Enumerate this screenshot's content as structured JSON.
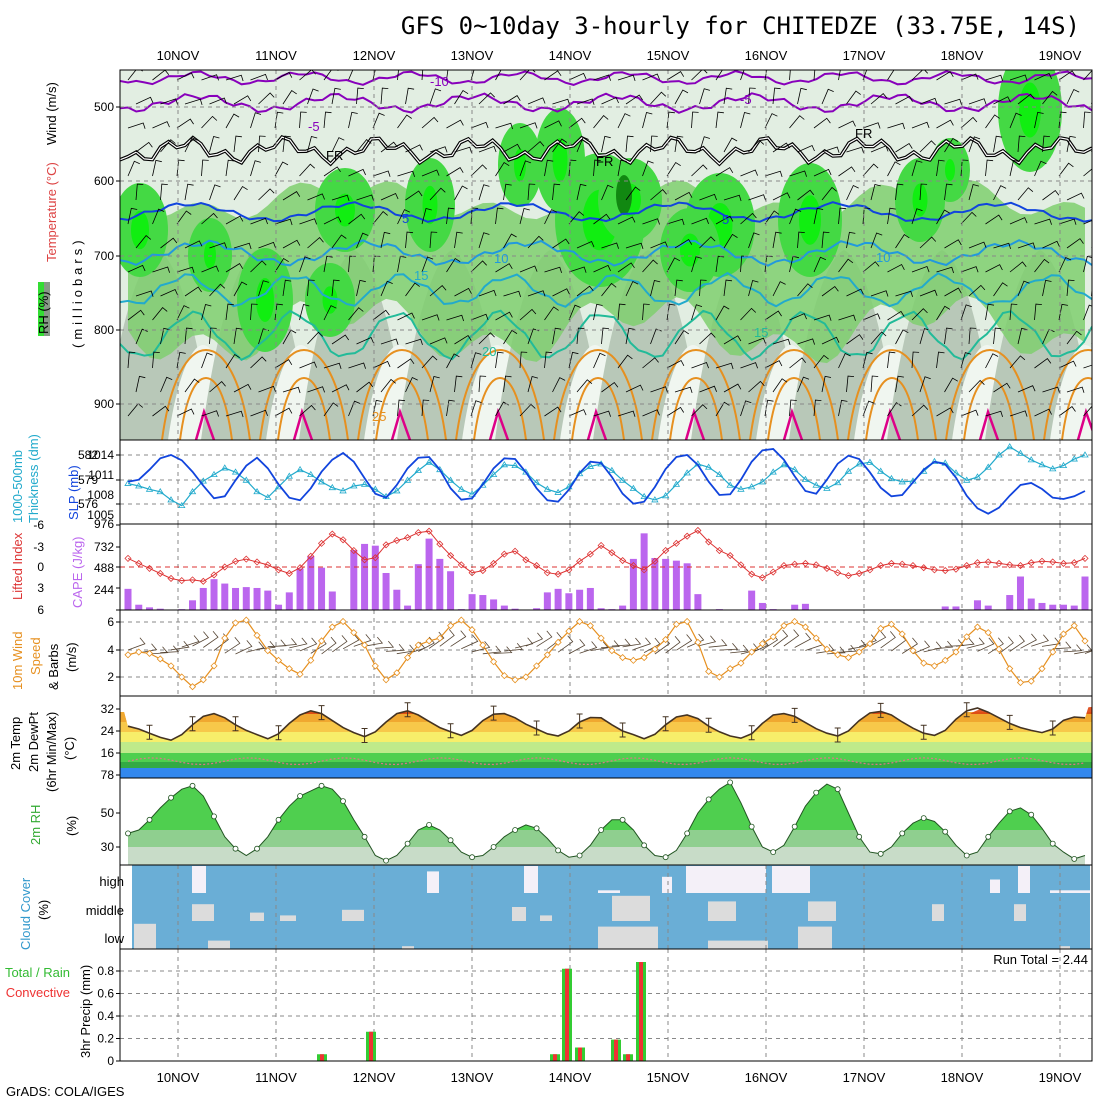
{
  "title": "GFS 0~10day 3-hourly for CHITEDZE (33.75E, 14S)",
  "footer": "GrADS: COLA/IGES",
  "dates": [
    "10NOV",
    "11NOV",
    "12NOV",
    "13NOV",
    "14NOV",
    "15NOV",
    "16NOV",
    "17NOV",
    "18NOV",
    "19NOV"
  ],
  "colors": {
    "rh": "#33cc33",
    "tempLine": "#1144dd",
    "purple": "#8800bb",
    "orange": "#e69020",
    "magenta": "#dd0088",
    "cyan": "#22aacc",
    "sea": "#22bb99",
    "lift": "#dd3333",
    "cape": "#bb66ee",
    "wind": "#e69020",
    "cloud": "#6aaed6",
    "rain": "#33cc33",
    "conv": "#ee3333"
  },
  "upper": {
    "ylabel_rh": "RH (%)",
    "ylabel_temp": "Temperature (°C)",
    "ylabel_wind": "Wind (m/s)",
    "ylabel_mb": "(milliobars)",
    "yticks": [
      "500",
      "600",
      "700",
      "800",
      "900"
    ],
    "contour_labels": {
      "m10": "-10",
      "m5a": "-5",
      "m5b": "-5",
      "fr1": "FR",
      "fr2": "FR",
      "fr3": "FR",
      "c5a": "5",
      "c5b": "5",
      "c10a": "10",
      "c10b": "10",
      "c15a": "15",
      "c15b": "15",
      "c20": "20",
      "c25": "25"
    }
  },
  "panels": {
    "slp": {
      "label1": "1000-500mb",
      "label2": "Thickness (dm)",
      "label3": "SLP (mb)",
      "yl": [
        "582",
        "579",
        "576"
      ],
      "yr": [
        "1014",
        "1011",
        "1008",
        "1005"
      ]
    },
    "lift": {
      "label1": "Lifted Index",
      "label2": "CAPE (J/kg)",
      "yl": [
        "-6",
        "-3",
        "0",
        "3",
        "6"
      ],
      "yr": [
        "976",
        "732",
        "488",
        "244"
      ]
    },
    "wind": {
      "label1": "10m Wind",
      "label2": "Speed",
      "label3": "& Barbs",
      "label4": "(m/s)",
      "yl": [
        "6",
        "4",
        "2"
      ]
    },
    "temp": {
      "label1": "2m Temp",
      "label2": "2m DewPt",
      "label3": "(6hr Min/Max)",
      "label4": "(°C)",
      "yl": [
        "32",
        "24",
        "16",
        "78"
      ]
    },
    "rh": {
      "label1": "2m RH",
      "label2": "(%)",
      "yl": [
        "50",
        "30"
      ]
    },
    "cloud": {
      "label1": "Cloud Cover",
      "label2": "(%)",
      "levels": [
        "high",
        "middle",
        "low"
      ]
    },
    "precip": {
      "label1": "Total / Rain",
      "label2": "Convective",
      "label3": "3hr Precip (mm)",
      "yl": [
        "0.8",
        "0.6",
        "0.4",
        "0.2",
        "0"
      ],
      "run_total": "Run Total = 2.44"
    }
  },
  "chart_data": [
    {
      "type": "line",
      "title": "1000-500mb Thickness (dm)",
      "series": [
        {
          "name": "thickness",
          "values": [
            578.5,
            578.2,
            577.8,
            577.5,
            576.5,
            575.8,
            577.5,
            578.8,
            579.6,
            580.4,
            579.9,
            578.9,
            577.5,
            576.8,
            578.1,
            579.4,
            580.2,
            579.6,
            578.7,
            578.0,
            577.6,
            578.2,
            578.4,
            577.8,
            576.9,
            577.6,
            578.9,
            580.1,
            581.1,
            580.2,
            578.9,
            577.8,
            577.2,
            578.3,
            579.6,
            580.8,
            580.7,
            579.9,
            578.6,
            577.8,
            577.4,
            578.1,
            579.7,
            580.6,
            580.9,
            580.1,
            578.9,
            577.9,
            576.9,
            576.5,
            577.0,
            578.4,
            579.8,
            580.9,
            580.5,
            579.6,
            578.3,
            577.8,
            578.1,
            578.7,
            579.9,
            580.8,
            580.2,
            579.0,
            578.3,
            577.9,
            578.6,
            580.0,
            580.9,
            581.1,
            580.0,
            579.1,
            578.7,
            578.8,
            580.0,
            581.2,
            581.0,
            579.8,
            578.9,
            579.3,
            580.5,
            582.0,
            583.0,
            582.2,
            581.4,
            580.8,
            580.3,
            580.7,
            581.5,
            582.0
          ]
        }
      ]
    },
    {
      "type": "line",
      "title": "SLP (mb)",
      "series": [
        {
          "name": "slp",
          "values": [
            1010.0,
            1010.3,
            1011.8,
            1013.5,
            1014.0,
            1013.2,
            1011.5,
            1009.4,
            1007.5,
            1007.8,
            1010.2,
            1012.4,
            1013.6,
            1012.0,
            1009.6,
            1007.6,
            1007.2,
            1009.0,
            1011.5,
            1013.3,
            1014.3,
            1013.0,
            1010.5,
            1008.2,
            1007.6,
            1009.5,
            1012.0,
            1013.6,
            1013.7,
            1011.8,
            1009.0,
            1007.3,
            1007.5,
            1009.6,
            1012.0,
            1013.5,
            1013.4,
            1011.4,
            1009.0,
            1007.2,
            1007.0,
            1008.8,
            1011.3,
            1013.0,
            1012.8,
            1010.7,
            1008.2,
            1006.7,
            1007.0,
            1009.2,
            1011.9,
            1013.7,
            1014.0,
            1012.5,
            1010.0,
            1008.0,
            1008.1,
            1010.3,
            1013.0,
            1014.7,
            1014.9,
            1013.3,
            1010.8,
            1008.6,
            1008.2,
            1010.3,
            1012.7,
            1013.9,
            1013.4,
            1011.4,
            1009.1,
            1007.8,
            1008.0,
            1009.9,
            1011.8,
            1013.0,
            1012.6,
            1010.6,
            1007.9,
            1006.0,
            1005.2,
            1006.1,
            1007.9,
            1009.5,
            1009.8,
            1008.9,
            1007.6,
            1007.4,
            1007.8,
            1008.6
          ]
        }
      ]
    },
    {
      "type": "bar",
      "title": "CAPE (J/kg)",
      "series": [
        {
          "name": "cape",
          "values": [
            240,
            60,
            30,
            15,
            0,
            10,
            110,
            250,
            350,
            300,
            250,
            260,
            250,
            220,
            60,
            200,
            470,
            610,
            480,
            210,
            0,
            680,
            750,
            730,
            420,
            230,
            50,
            520,
            810,
            580,
            440,
            10,
            180,
            170,
            120,
            50,
            15,
            5,
            20,
            200,
            240,
            190,
            230,
            250,
            20,
            10,
            50,
            580,
            870,
            590,
            580,
            560,
            530,
            180,
            0,
            10,
            0,
            0,
            220,
            80,
            10,
            0,
            60,
            70,
            0,
            0,
            0,
            0,
            0,
            0,
            0,
            0,
            0,
            0,
            0,
            0,
            40,
            40,
            0,
            110,
            50,
            0,
            170,
            380,
            130,
            80,
            60,
            60,
            50,
            380
          ]
        }
      ]
    },
    {
      "type": "line",
      "title": "Lifted Index",
      "series": [
        {
          "name": "lifted_index",
          "values": [
            -1.2,
            -0.5,
            0.2,
            0.9,
            1.6,
            1.9,
            1.8,
            2.0,
            1.1,
            0.0,
            -0.8,
            -1.1,
            -0.7,
            -0.3,
            0.4,
            0.9,
            0.1,
            -1.5,
            -3.3,
            -4.6,
            -3.8,
            -2.3,
            -1.0,
            -1.3,
            -3.1,
            -3.7,
            -4.1,
            -4.8,
            -5.0,
            -3.2,
            -1.6,
            -0.3,
            0.8,
            0.5,
            -0.5,
            -1.8,
            -2.2,
            -1.0,
            -0.2,
            0.8,
            1.0,
            0.4,
            -0.8,
            -1.8,
            -3.0,
            -2.0,
            -0.9,
            -0.2,
            0.4,
            -0.8,
            -2.3,
            -3.3,
            -4.3,
            -5.1,
            -3.5,
            -2.3,
            -1.6,
            -0.3,
            1.0,
            1.5,
            0.7,
            -0.2,
            -0.4,
            -0.5,
            -0.3,
            0.2,
            0.8,
            1.2,
            0.9,
            0.4,
            -0.2,
            -0.5,
            -0.4,
            -0.2,
            0.1,
            0.4,
            0.5,
            0.3,
            -0.2,
            -0.6,
            -0.7,
            -0.5,
            -0.3,
            -0.2,
            -0.6,
            -0.8,
            -0.7,
            -0.5,
            -0.6,
            -1.2
          ]
        }
      ]
    },
    {
      "type": "line",
      "title": "10m Wind Speed (m/s)",
      "series": [
        {
          "name": "speed",
          "values": [
            3.6,
            3.8,
            3.7,
            3.3,
            2.8,
            2.0,
            1.3,
            1.8,
            2.8,
            4.8,
            5.9,
            6.1,
            5.0,
            3.9,
            3.2,
            2.6,
            2.2,
            3.2,
            4.6,
            5.6,
            6.0,
            5.2,
            4.3,
            2.8,
            1.8,
            2.3,
            3.4,
            4.3,
            4.6,
            4.8,
            5.7,
            6.1,
            5.4,
            4.3,
            3.1,
            2.1,
            1.8,
            2.0,
            2.8,
            3.6,
            4.5,
            5.3,
            6.0,
            5.7,
            4.8,
            3.9,
            3.4,
            3.2,
            3.4,
            4.0,
            4.7,
            5.8,
            6.0,
            4.5,
            2.4,
            2.0,
            2.6,
            3.0,
            3.8,
            4.4,
            4.9,
            5.7,
            6.0,
            5.6,
            4.8,
            4.0,
            3.6,
            3.4,
            3.8,
            4.4,
            5.5,
            5.8,
            5.1,
            3.9,
            3.0,
            2.8,
            3.2,
            3.8,
            4.9,
            5.6,
            5.2,
            4.0,
            2.6,
            1.6,
            1.7,
            2.6,
            3.8,
            5.1,
            5.7,
            4.6
          ]
        }
      ]
    },
    {
      "type": "area",
      "title": "2m Temp (°C)",
      "series": [
        {
          "name": "temp",
          "values": [
            26.5,
            25.5,
            24.0,
            22.5,
            21.5,
            23.5,
            27.0,
            30.0,
            31.0,
            29.5,
            27.0,
            25.0,
            23.5,
            22.0,
            23.8,
            27.5,
            30.5,
            32.0,
            31.0,
            28.5,
            26.0,
            24.2,
            22.8,
            24.5,
            28.0,
            31.0,
            32.0,
            30.5,
            28.2,
            26.0,
            24.5,
            23.2,
            25.0,
            28.5,
            30.8,
            31.0,
            29.5,
            27.2,
            25.5,
            23.8,
            23.0,
            24.8,
            28.0,
            29.6,
            29.5,
            27.0,
            24.8,
            23.5,
            22.0,
            23.6,
            27.0,
            29.8,
            30.5,
            29.2,
            26.5,
            24.5,
            23.0,
            22.2,
            23.8,
            27.5,
            30.5,
            31.0,
            30.0,
            27.8,
            25.6,
            24.0,
            23.0,
            24.8,
            28.5,
            31.2,
            31.8,
            30.5,
            28.0,
            25.8,
            24.0,
            23.2,
            25.0,
            29.0,
            32.0,
            33.0,
            31.5,
            29.5,
            27.5,
            26.0,
            25.0,
            24.2,
            25.5,
            28.6,
            29.8,
            29.5
          ]
        }
      ]
    },
    {
      "type": "area",
      "title": "2m RH (%)",
      "series": [
        {
          "name": "rh",
          "values": [
            38,
            40,
            46,
            53,
            59,
            64,
            66,
            60,
            48,
            36,
            29,
            25,
            29,
            36,
            46,
            54,
            60,
            63,
            66,
            64,
            57,
            46,
            36,
            25,
            22,
            25,
            32,
            40,
            43,
            40,
            34,
            27,
            24,
            25,
            30,
            36,
            40,
            43,
            41,
            35,
            28,
            24,
            25,
            31,
            40,
            46,
            46,
            40,
            31,
            25,
            24,
            28,
            38,
            50,
            58,
            64,
            68,
            56,
            42,
            30,
            27,
            31,
            42,
            54,
            62,
            67,
            64,
            50,
            36,
            27,
            26,
            30,
            38,
            44,
            47,
            45,
            39,
            31,
            25,
            27,
            36,
            44,
            51,
            53,
            49,
            41,
            32,
            27,
            23,
            25
          ]
        }
      ]
    },
    {
      "type": "bar",
      "title": "3hr Precip (mm)",
      "categories": [
        "11NOV 18Z",
        "12NOV 00Z",
        "14NOV 00Z",
        "14NOV 03Z",
        "14NOV 06Z",
        "14NOV 15Z",
        "14NOV 18Z",
        "14NOV 21Z"
      ],
      "series": [
        {
          "name": "total",
          "values": [
            0.06,
            0.26,
            0.06,
            0.82,
            0.12,
            0.19,
            0.06,
            0.88
          ]
        },
        {
          "name": "convective",
          "values": [
            0.06,
            0.26,
            0.06,
            0.82,
            0.12,
            0.19,
            0.06,
            0.88
          ]
        }
      ]
    }
  ]
}
